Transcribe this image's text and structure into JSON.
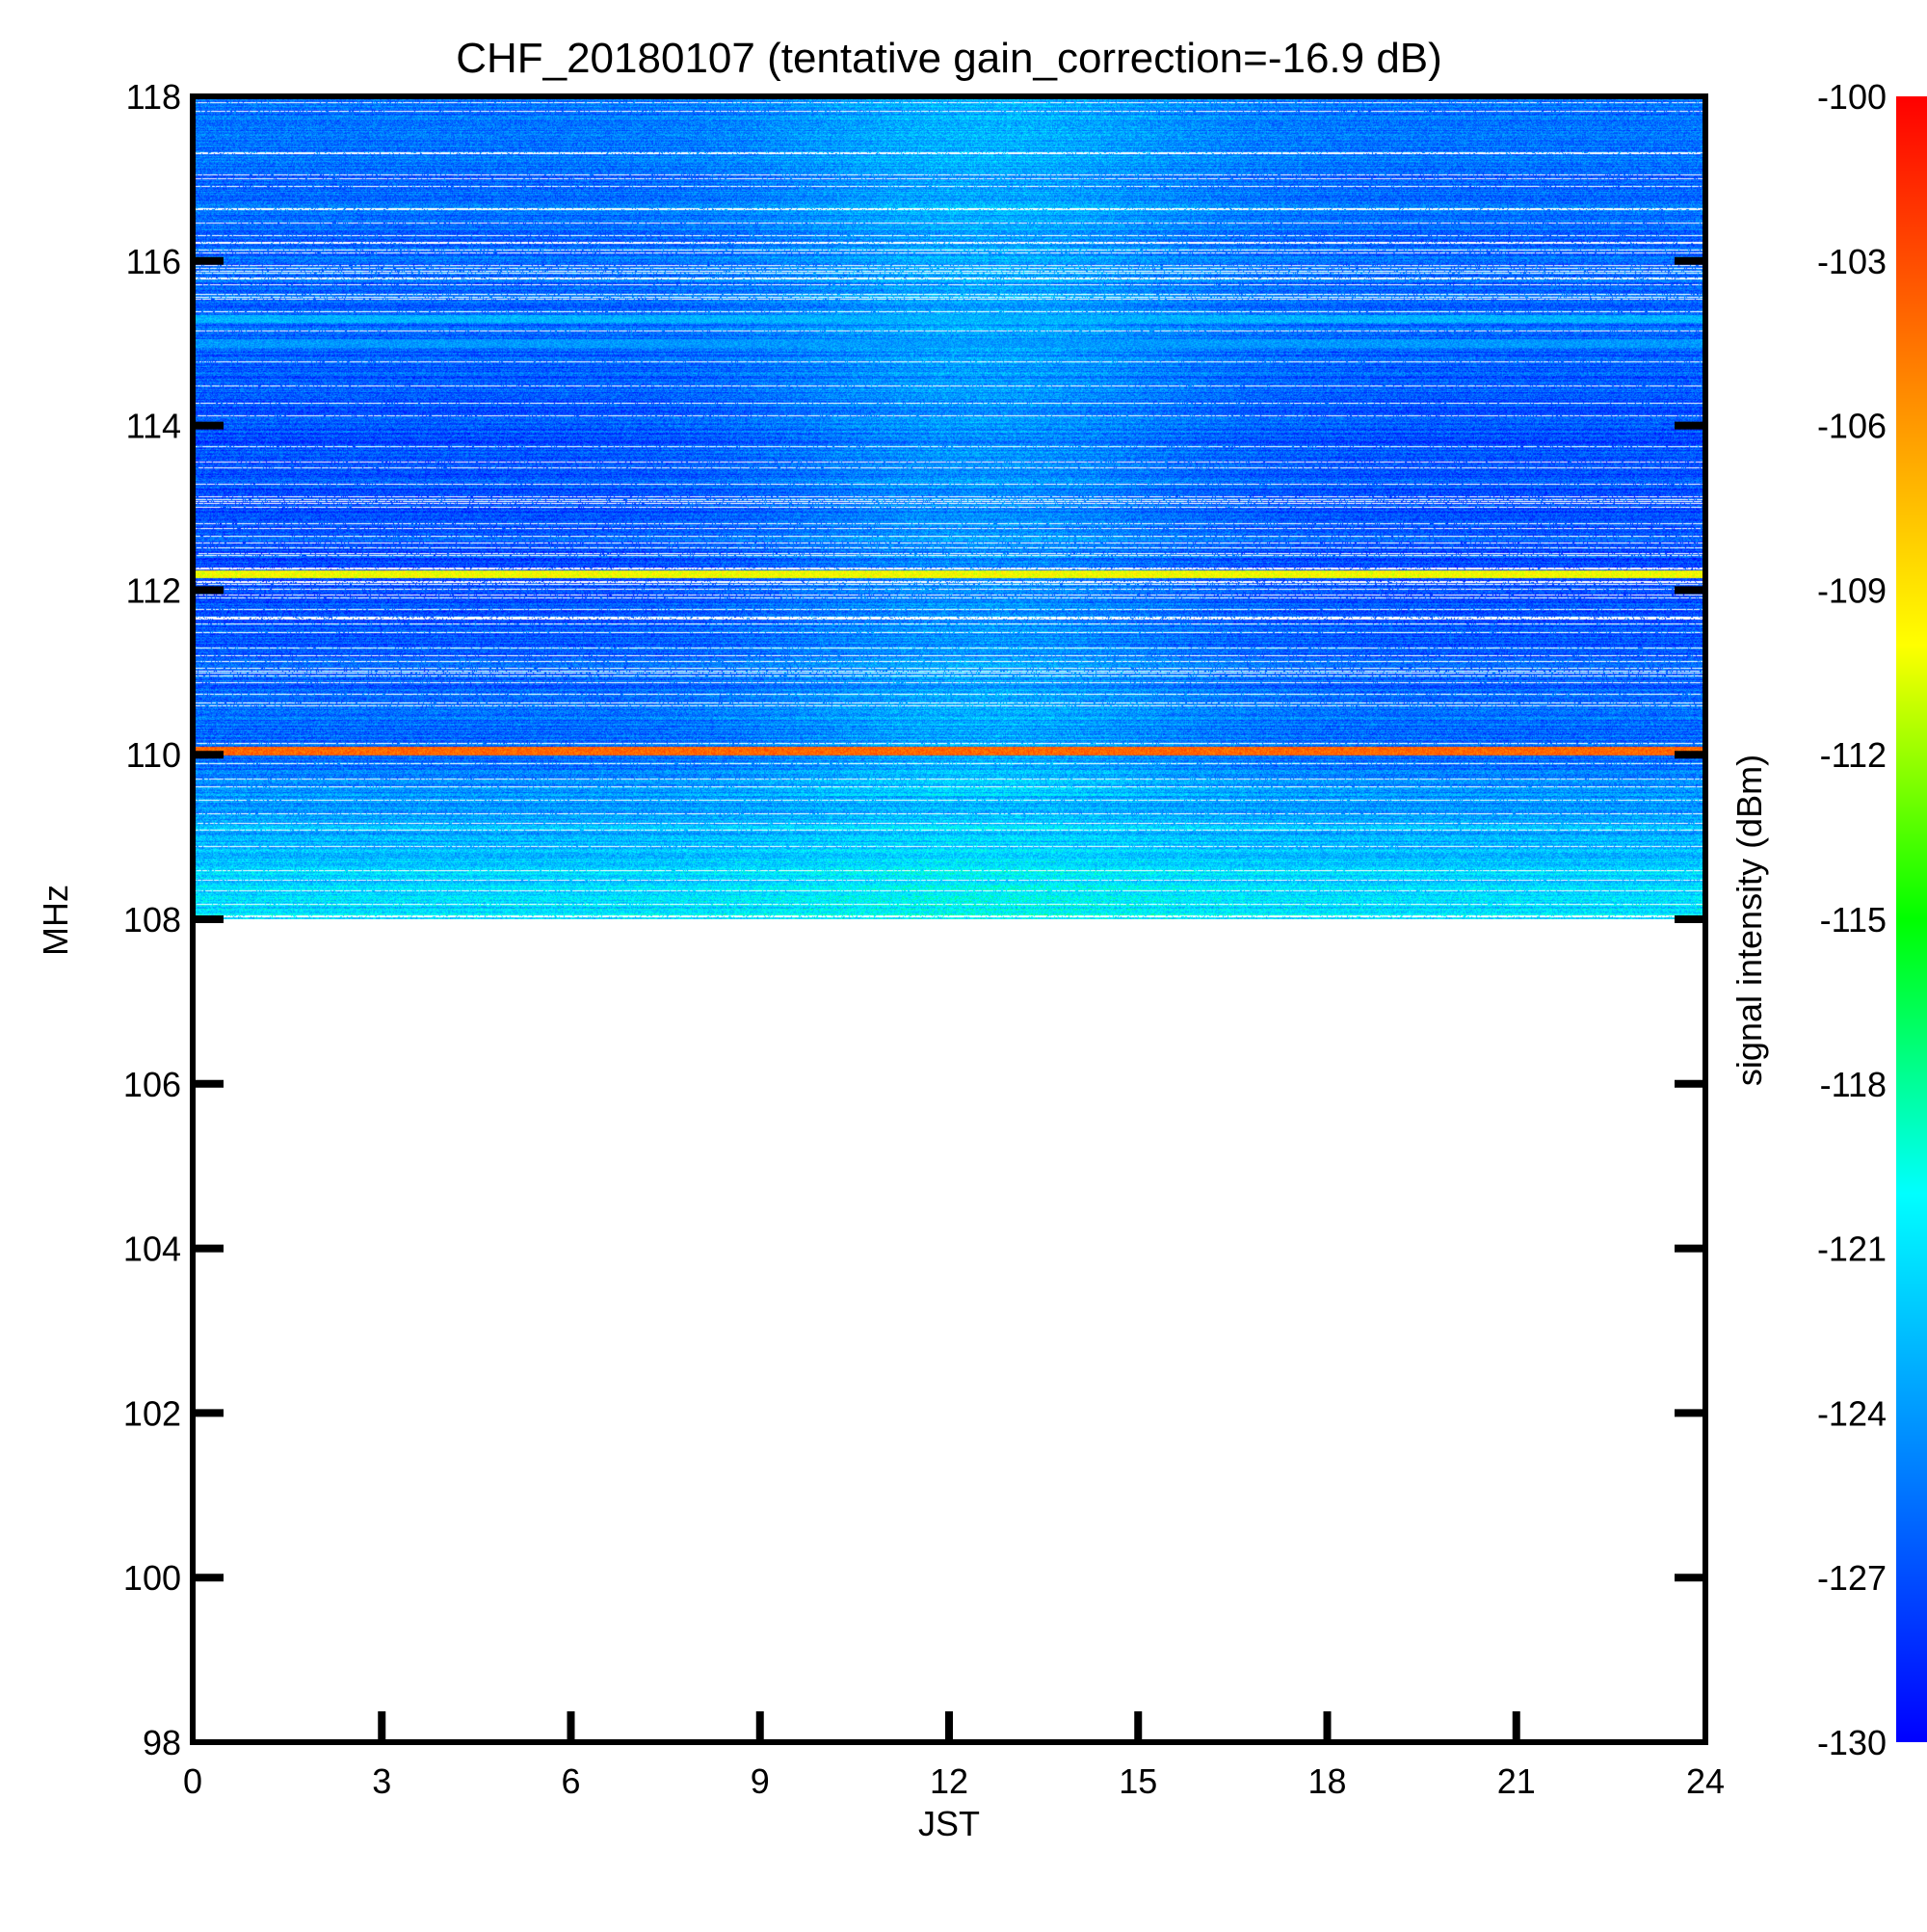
{
  "chart_data": {
    "type": "heatmap",
    "title": "CHF_20180107 (tentative gain_correction=-16.9 dB)",
    "xlabel": "JST",
    "ylabel": "MHz",
    "colorbar_label": "signal intensity (dBm)",
    "xlim": [
      0,
      24
    ],
    "ylim": [
      98,
      118
    ],
    "x_ticks": [
      "0",
      "3",
      "6",
      "9",
      "12",
      "15",
      "18",
      "21",
      "24"
    ],
    "y_ticks": [
      "98",
      "100",
      "102",
      "104",
      "106",
      "108",
      "110",
      "112",
      "114",
      "116",
      "118"
    ],
    "colorbar_range": [
      -130,
      -100
    ],
    "colorbar_ticks": [
      "-100",
      "-103",
      "-106",
      "-109",
      "-112",
      "-115",
      "-118",
      "-121",
      "-124",
      "-127",
      "-130"
    ],
    "data_frequency_range": [
      108,
      118
    ],
    "background_level_dbm": {
      "118": -125.5,
      "115": -126.5,
      "112": -127,
      "110": -125.5,
      "109": -123,
      "108": -121
    },
    "midday_enhancement": {
      "center_jst": 12.5,
      "extra_dbm": 2.5
    },
    "strong_lines": [
      {
        "freq_mhz": 110.05,
        "level_dbm": -104
      },
      {
        "freq_mhz": 112.2,
        "level_dbm": -110
      },
      {
        "freq_mhz": 115.3,
        "level_dbm": -123
      },
      {
        "freq_mhz": 115.0,
        "level_dbm": -124
      }
    ],
    "colormap": [
      "#0000ff",
      "#0080ff",
      "#00ffff",
      "#00ff00",
      "#ffff00",
      "#ff8000",
      "#ff0000"
    ]
  }
}
